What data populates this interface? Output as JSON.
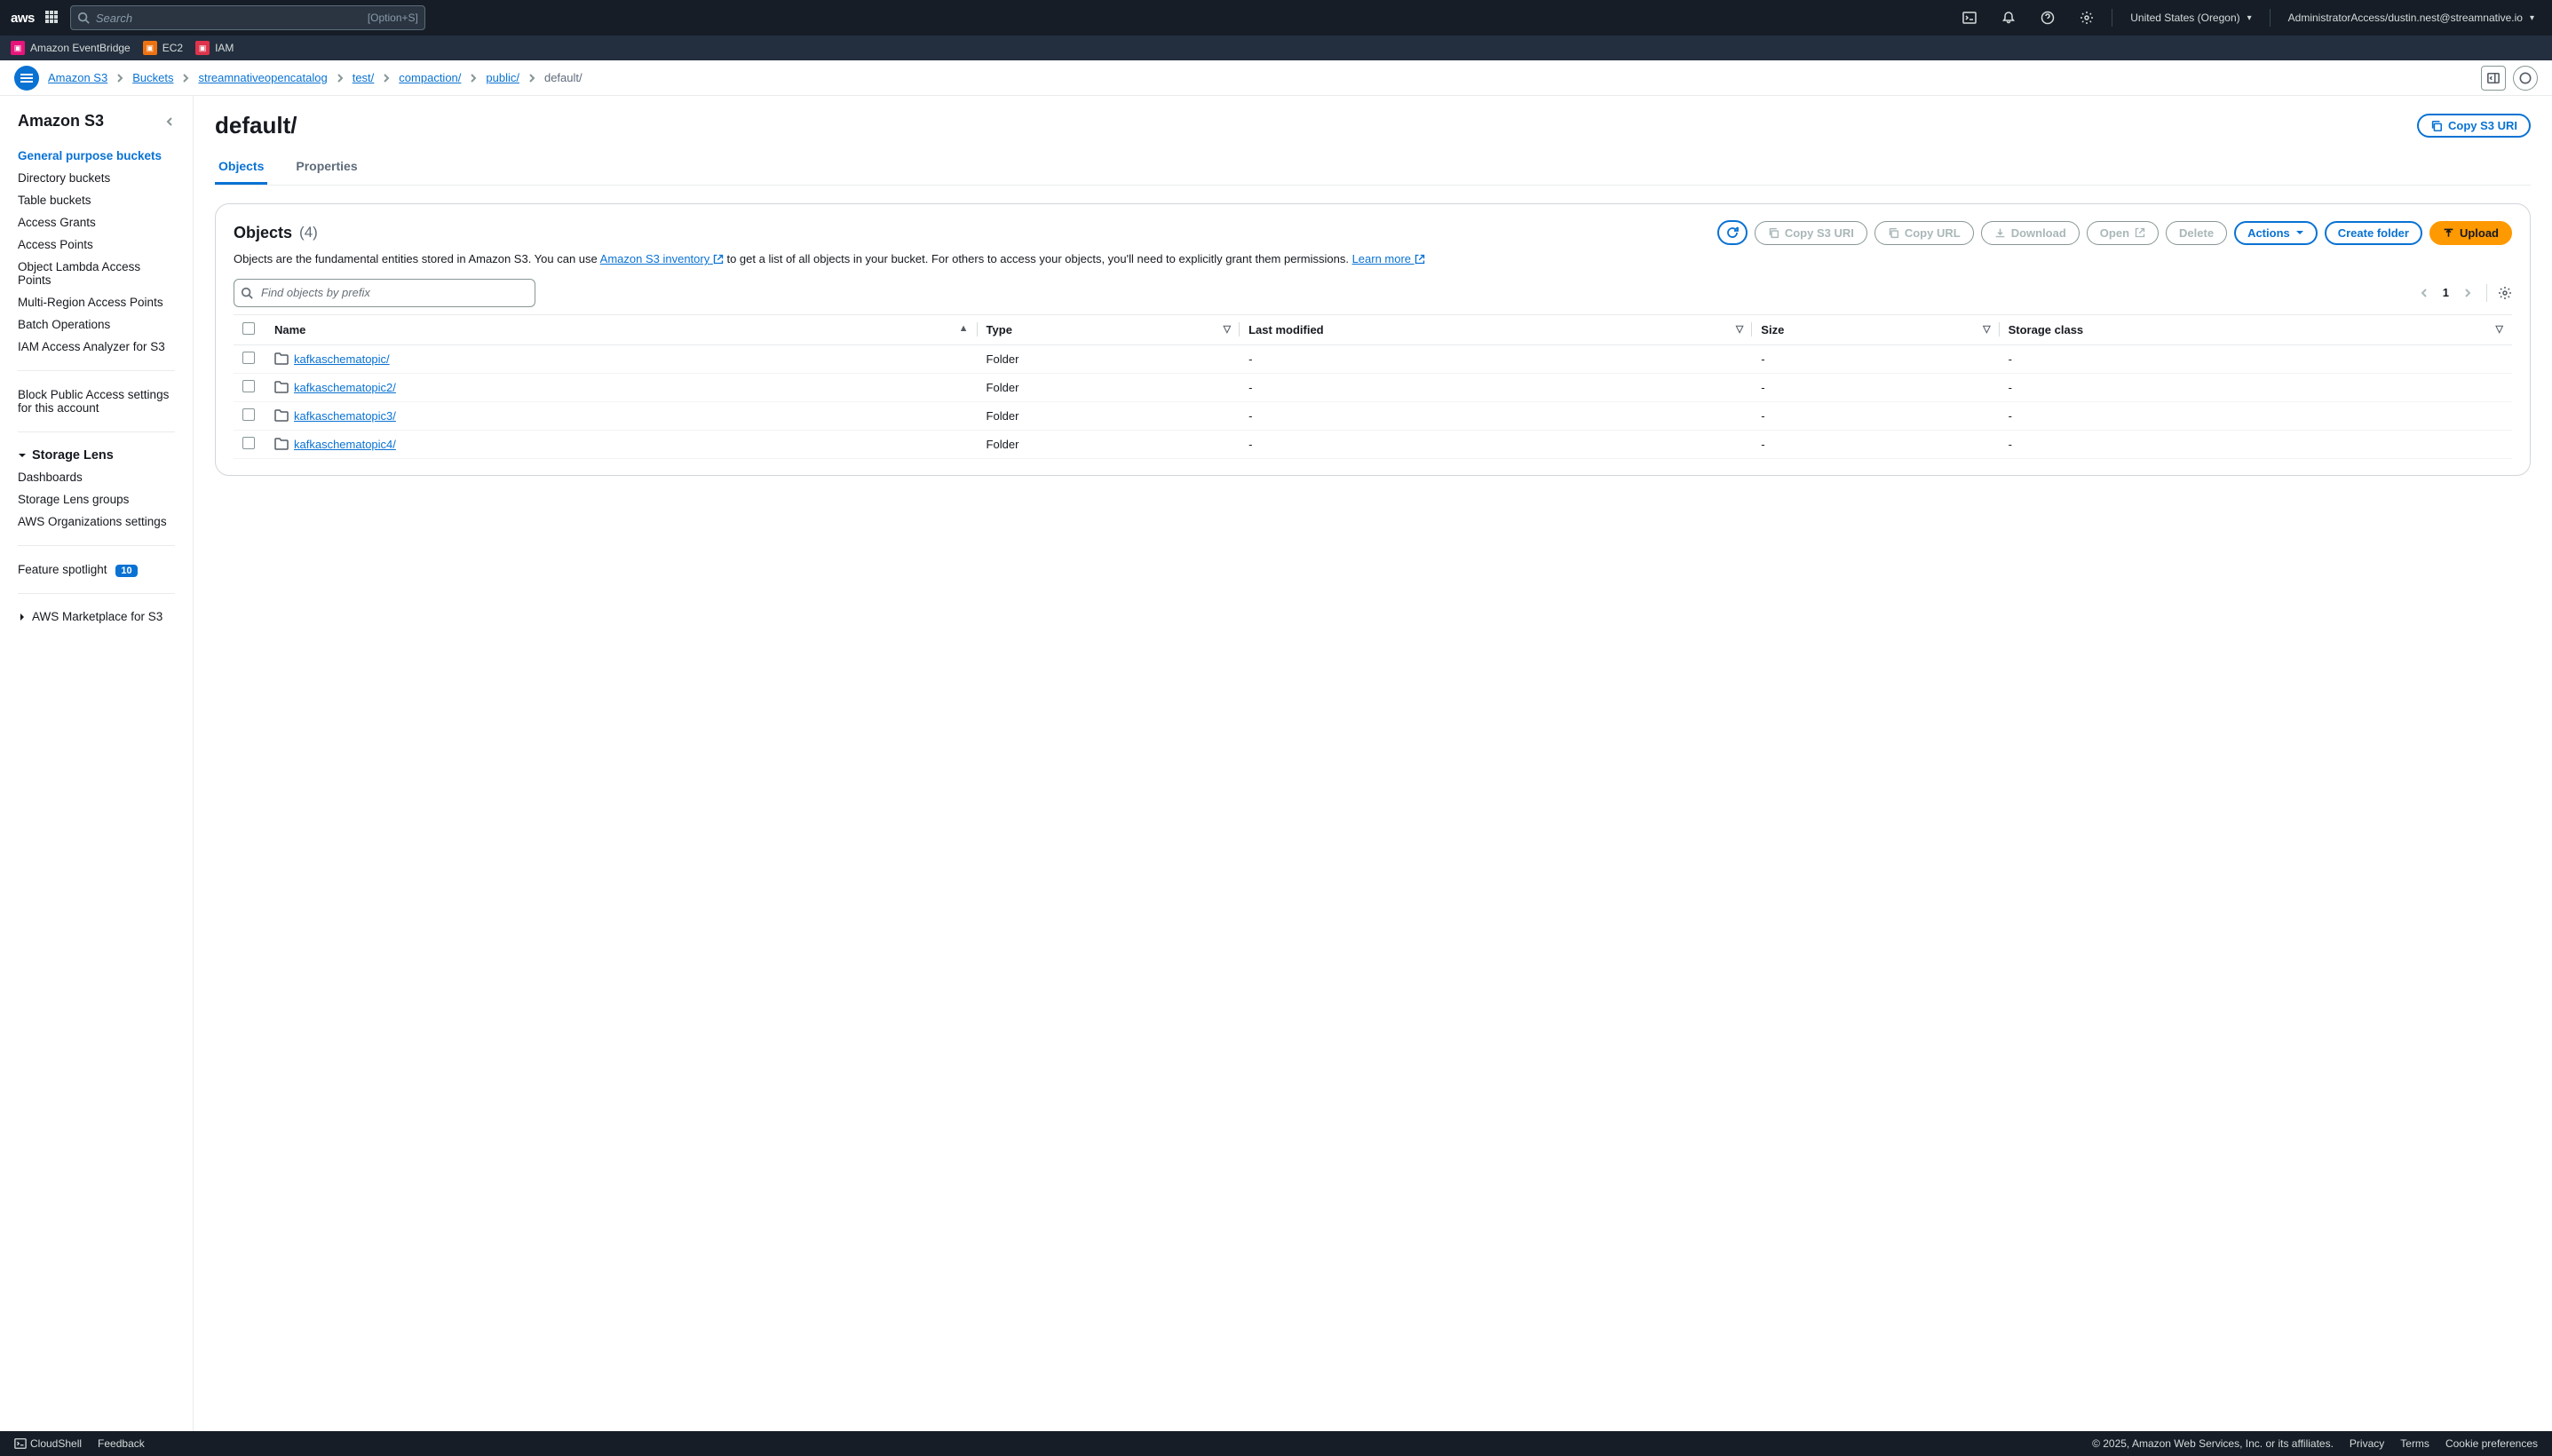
{
  "topnav": {
    "logo": "aws",
    "search_placeholder": "Search",
    "search_hint": "[Option+S]",
    "region": "United States (Oregon)",
    "account": "AdministratorAccess/dustin.nest@streamnative.io"
  },
  "favorites": [
    {
      "label": "Amazon EventBridge",
      "color": "#e7157b"
    },
    {
      "label": "EC2",
      "color": "#ed7211"
    },
    {
      "label": "IAM",
      "color": "#dd344c"
    }
  ],
  "breadcrumb": {
    "items": [
      {
        "label": "Amazon S3",
        "link": true
      },
      {
        "label": "Buckets",
        "link": true
      },
      {
        "label": "streamnativeopencatalog",
        "link": true
      },
      {
        "label": "test/",
        "link": true
      },
      {
        "label": "compaction/",
        "link": true
      },
      {
        "label": "public/",
        "link": true
      },
      {
        "label": "default/",
        "link": false
      }
    ]
  },
  "sidebar": {
    "title": "Amazon S3",
    "nav": [
      "General purpose buckets",
      "Directory buckets",
      "Table buckets",
      "Access Grants",
      "Access Points",
      "Object Lambda Access Points",
      "Multi-Region Access Points",
      "Batch Operations",
      "IAM Access Analyzer for S3"
    ],
    "block_public": "Block Public Access settings for this account",
    "storage_lens": {
      "title": "Storage Lens",
      "items": [
        "Dashboards",
        "Storage Lens groups",
        "AWS Organizations settings"
      ]
    },
    "spotlight": {
      "label": "Feature spotlight",
      "count": "10"
    },
    "marketplace": "AWS Marketplace for S3"
  },
  "page": {
    "title": "default/",
    "copy_uri": "Copy S3 URI"
  },
  "tabs": [
    "Objects",
    "Properties"
  ],
  "panel": {
    "title": "Objects",
    "count": "(4)",
    "actions": {
      "copy_s3_uri": "Copy S3 URI",
      "copy_url": "Copy URL",
      "download": "Download",
      "open": "Open",
      "delete": "Delete",
      "actions": "Actions",
      "create_folder": "Create folder",
      "upload": "Upload"
    },
    "description_pre": "Objects are the fundamental entities stored in Amazon S3. You can use ",
    "inventory_link": "Amazon S3 inventory",
    "description_mid": " to get a list of all objects in your bucket. For others to access your objects, you'll need to explicitly grant them permissions. ",
    "learn_more": "Learn more",
    "filter_placeholder": "Find objects by prefix",
    "pager": "1"
  },
  "columns": [
    "Name",
    "Type",
    "Last modified",
    "Size",
    "Storage class"
  ],
  "rows": [
    {
      "name": "kafkaschematopic/",
      "type": "Folder",
      "last_modified": "-",
      "size": "-",
      "storage_class": "-"
    },
    {
      "name": "kafkaschematopic2/",
      "type": "Folder",
      "last_modified": "-",
      "size": "-",
      "storage_class": "-"
    },
    {
      "name": "kafkaschematopic3/",
      "type": "Folder",
      "last_modified": "-",
      "size": "-",
      "storage_class": "-"
    },
    {
      "name": "kafkaschematopic4/",
      "type": "Folder",
      "last_modified": "-",
      "size": "-",
      "storage_class": "-"
    }
  ],
  "footer": {
    "cloudshell": "CloudShell",
    "feedback": "Feedback",
    "copyright": "© 2025, Amazon Web Services, Inc. or its affiliates.",
    "privacy": "Privacy",
    "terms": "Terms",
    "cookies": "Cookie preferences"
  }
}
